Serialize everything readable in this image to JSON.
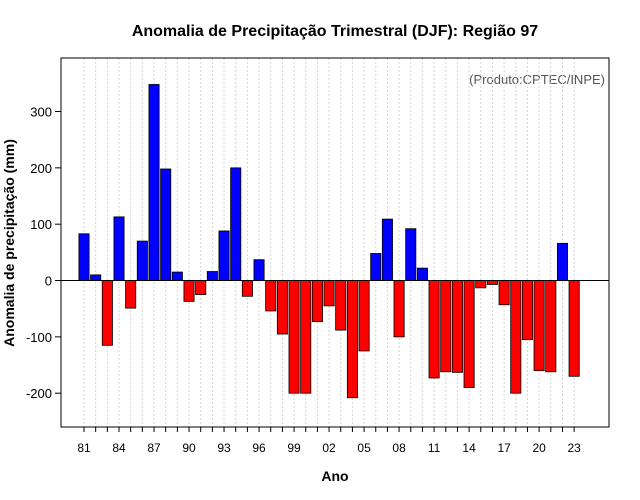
{
  "chart_data": {
    "type": "bar",
    "title": "Anomalia de Precipitação Trimestral (DJF): Região 97",
    "xlabel": "Ano",
    "ylabel": "Anomalia de precipitação (mm)",
    "credit": "(Produto:CPTEC/INPE)",
    "ylim": [
      -260,
      395
    ],
    "y_ticks": [
      -200,
      -100,
      0,
      100,
      200,
      300
    ],
    "x_tick_labels": [
      "81",
      "84",
      "87",
      "90",
      "93",
      "96",
      "99",
      "02",
      "05",
      "08",
      "11",
      "14",
      "17",
      "20",
      "23"
    ],
    "categories": [
      "1981",
      "1982",
      "1983",
      "1984",
      "1985",
      "1986",
      "1987",
      "1988",
      "1989",
      "1990",
      "1991",
      "1992",
      "1993",
      "1994",
      "1995",
      "1996",
      "1997",
      "1998",
      "1999",
      "2000",
      "2001",
      "2002",
      "2003",
      "2004",
      "2005",
      "2006",
      "2007",
      "2008",
      "2009",
      "2010",
      "2011",
      "2012",
      "2013",
      "2014",
      "2015",
      "2016",
      "2017",
      "2018",
      "2019",
      "2020",
      "2021",
      "2022",
      "2023"
    ],
    "values": [
      83,
      10,
      -115,
      113,
      -49,
      70,
      348,
      198,
      15,
      -37,
      -25,
      16,
      88,
      200,
      -28,
      37,
      -54,
      -95,
      -200,
      -200,
      -73,
      -45,
      -88,
      -208,
      -125,
      48,
      109,
      -100,
      92,
      22,
      -173,
      -162,
      -163,
      -190,
      -13,
      -7,
      -43,
      -200,
      -105,
      -160,
      -162,
      66,
      -170
    ],
    "colors": {
      "positive": "#0000ff",
      "negative": "#ff0000",
      "bar_stroke": "#000000",
      "grid": "#d3d3d3"
    }
  }
}
